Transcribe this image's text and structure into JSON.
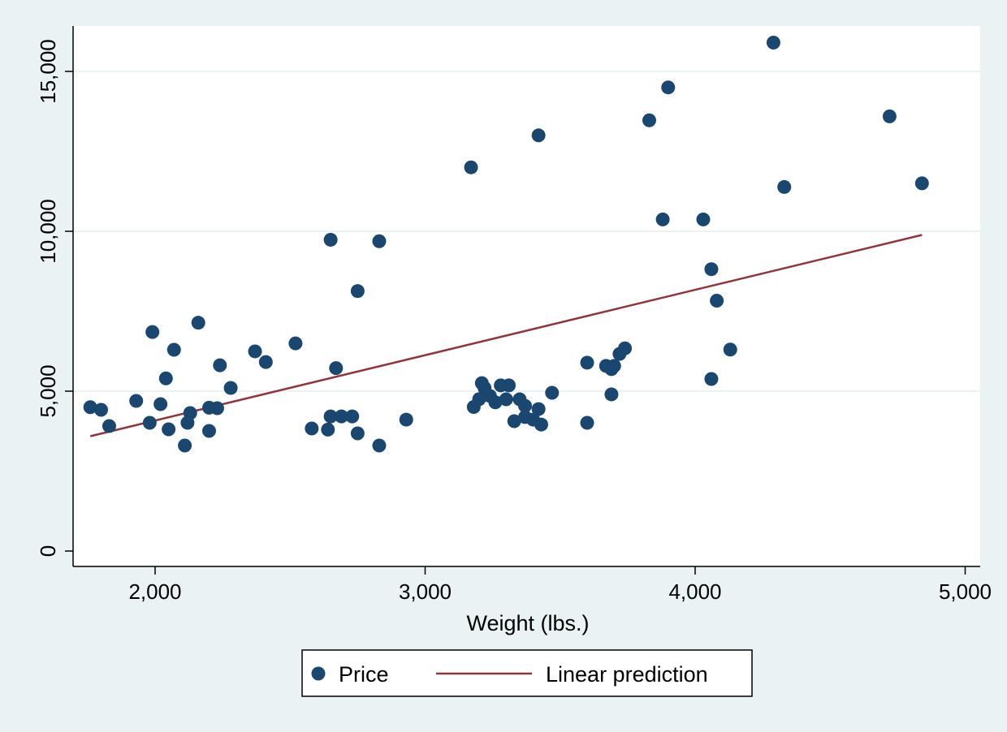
{
  "chart_data": {
    "type": "scatter",
    "title": "",
    "xlabel": "Weight (lbs.)",
    "ylabel": "",
    "xlim": [
      1700,
      5060
    ],
    "ylim": [
      -500,
      16400
    ],
    "xticks": [
      2000,
      3000,
      4000,
      5000
    ],
    "xtick_labels": [
      "2,000",
      "3,000",
      "4,000",
      "5,000"
    ],
    "yticks": [
      0,
      5000,
      10000,
      15000
    ],
    "ytick_labels": [
      "0",
      "5,000",
      "10,000",
      "15,000"
    ],
    "grid": "horizontal",
    "legend": {
      "placement": "bottom",
      "entries": [
        "Price",
        "Linear prediction"
      ]
    },
    "colors": {
      "marker": "#1a476f",
      "line": "#90353b",
      "background": "#eaf2f3",
      "plot": "#ffffff",
      "grid": "#eaf2f3"
    },
    "series": [
      {
        "name": "Price",
        "type": "scatter",
        "points": [
          [
            1760,
            4499
          ],
          [
            1800,
            4416
          ],
          [
            1830,
            3909
          ],
          [
            1930,
            4695
          ],
          [
            1980,
            4010
          ],
          [
            1990,
            6850
          ],
          [
            2020,
            4594
          ],
          [
            2040,
            5400
          ],
          [
            2050,
            3807
          ],
          [
            2070,
            6295
          ],
          [
            2110,
            3299
          ],
          [
            2120,
            4010
          ],
          [
            2130,
            4315
          ],
          [
            2160,
            7140
          ],
          [
            2200,
            4482
          ],
          [
            2200,
            3756
          ],
          [
            2230,
            4467
          ],
          [
            2240,
            5810
          ],
          [
            2280,
            5100
          ],
          [
            2370,
            6245
          ],
          [
            2410,
            5910
          ],
          [
            2520,
            6495
          ],
          [
            2580,
            3832
          ],
          [
            2640,
            3798
          ],
          [
            2650,
            9735
          ],
          [
            2650,
            4210
          ],
          [
            2670,
            5720
          ],
          [
            2690,
            4210
          ],
          [
            2730,
            4210
          ],
          [
            2750,
            3680
          ],
          [
            2750,
            8130
          ],
          [
            2830,
            9690
          ],
          [
            2830,
            3299
          ],
          [
            2930,
            4110
          ],
          [
            3170,
            12000
          ],
          [
            3180,
            4505
          ],
          [
            3200,
            4750
          ],
          [
            3210,
            5250
          ],
          [
            3220,
            5100
          ],
          [
            3240,
            4850
          ],
          [
            3260,
            4650
          ],
          [
            3280,
            5180
          ],
          [
            3300,
            4745
          ],
          [
            3310,
            5180
          ],
          [
            3330,
            4060
          ],
          [
            3350,
            4745
          ],
          [
            3370,
            4540
          ],
          [
            3370,
            4190
          ],
          [
            3400,
            4110
          ],
          [
            3420,
            4440
          ],
          [
            3420,
            13000
          ],
          [
            3430,
            3955
          ],
          [
            3470,
            4950
          ],
          [
            3600,
            5890
          ],
          [
            3600,
            4010
          ],
          [
            3670,
            5790
          ],
          [
            3690,
            5690
          ],
          [
            3690,
            4900
          ],
          [
            3700,
            5790
          ],
          [
            3720,
            6165
          ],
          [
            3740,
            6340
          ],
          [
            3830,
            13470
          ],
          [
            3880,
            10370
          ],
          [
            3900,
            14500
          ],
          [
            4030,
            10370
          ],
          [
            4060,
            8815
          ],
          [
            4060,
            5380
          ],
          [
            4080,
            7830
          ],
          [
            4130,
            6300
          ],
          [
            4290,
            15900
          ],
          [
            4330,
            11385
          ],
          [
            4720,
            13595
          ],
          [
            4840,
            11500
          ]
        ]
      },
      {
        "name": "Linear prediction",
        "type": "line",
        "points": [
          [
            1760,
            3591
          ],
          [
            4840,
            9886
          ]
        ]
      }
    ]
  }
}
